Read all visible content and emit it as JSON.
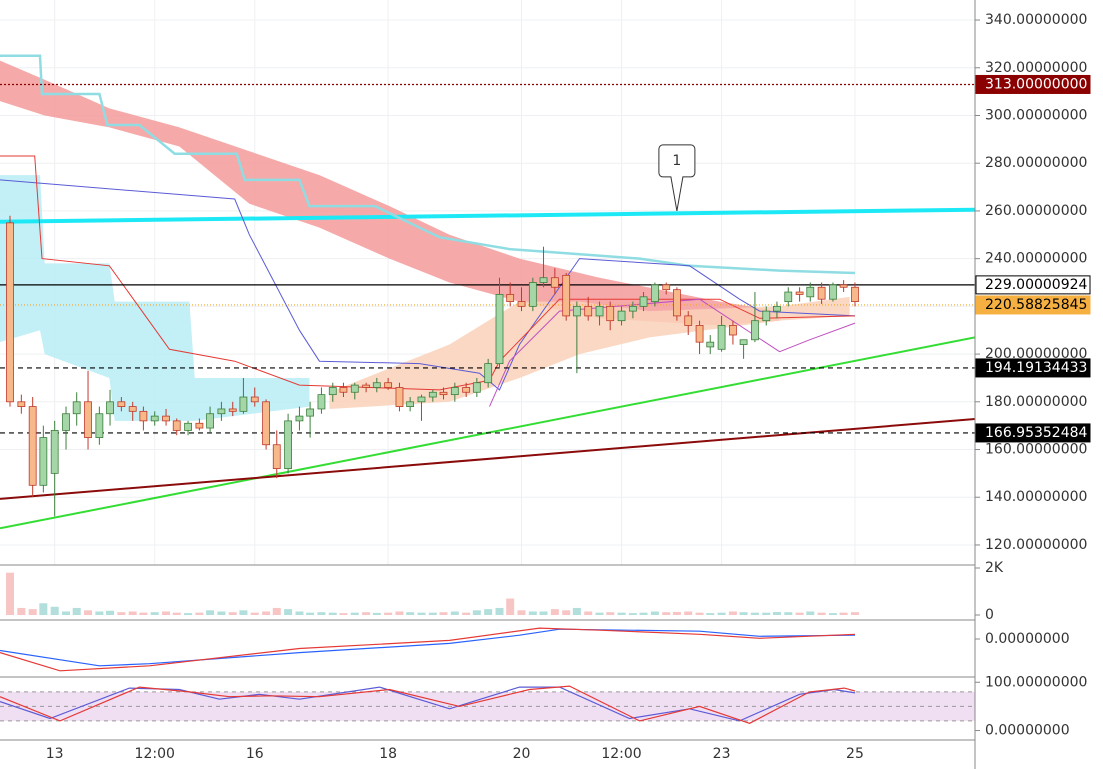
{
  "chart_data": {
    "type": "candlestick",
    "xlim": [
      12.18,
      26.8
    ],
    "xticks": [
      13,
      {
        "value": 14.5,
        "label": "12:00"
      },
      16,
      18,
      20,
      {
        "value": 21.5,
        "label": "12:00"
      },
      23,
      25
    ],
    "ylim": [
      111.6,
      348.4
    ],
    "yticks": [
      {
        "value": 340,
        "label": "340.00000000"
      },
      {
        "value": 320,
        "label": "320.00000000"
      },
      {
        "value": 300,
        "label": "300.00000000"
      },
      {
        "value": 280,
        "label": "280.00000000"
      },
      {
        "value": 260,
        "label": "260.00000000"
      },
      {
        "value": 240,
        "label": "240.00000000"
      },
      {
        "value": 220,
        "label": "220.00000000"
      },
      {
        "value": 200,
        "label": "200.00000000"
      },
      {
        "value": 180,
        "label": "180.00000000"
      },
      {
        "value": 160,
        "label": "160.00000000"
      },
      {
        "value": 140,
        "label": "140.00000000"
      },
      {
        "value": 120,
        "label": "120.00000000"
      }
    ],
    "grid": true,
    "up_color": "#a5d6a7",
    "up_stroke": "#3c7f3c",
    "down_color": "#f7b98a",
    "down_stroke": "#c0392b",
    "x": [
      12.33,
      12.5,
      12.67,
      12.83,
      13,
      13.17,
      13.33,
      13.5,
      13.67,
      13.83,
      14,
      14.17,
      14.33,
      14.5,
      14.67,
      14.83,
      15,
      15.17,
      15.33,
      15.5,
      15.67,
      15.83,
      16,
      16.17,
      16.33,
      16.5,
      16.67,
      16.83,
      17,
      17.17,
      17.33,
      17.5,
      17.67,
      17.83,
      18,
      18.17,
      18.33,
      18.5,
      18.67,
      18.83,
      19,
      19.17,
      19.33,
      19.5,
      19.67,
      19.83,
      20,
      20.17,
      20.33,
      20.5,
      20.67,
      20.83,
      21,
      21.17,
      21.33,
      21.5,
      21.67,
      21.83,
      22,
      22.17,
      22.33,
      22.5,
      22.67,
      22.83,
      23,
      23.17,
      23.33,
      23.5,
      23.67,
      23.83,
      24,
      24.17,
      24.33,
      24.5,
      24.67,
      24.83,
      25
    ],
    "open": [
      255,
      180,
      178,
      145,
      150,
      168,
      175,
      180,
      165,
      175,
      180,
      178,
      176,
      172,
      174,
      172,
      168,
      171,
      169,
      175,
      177,
      176,
      182,
      180,
      162,
      152,
      172,
      174,
      177,
      183,
      186,
      184,
      187,
      186,
      188,
      186,
      178,
      180,
      182,
      184,
      183,
      186,
      184,
      188,
      196,
      225,
      222,
      220,
      230,
      232,
      233,
      216,
      220,
      216,
      220,
      214,
      218,
      220,
      222,
      229,
      227,
      216,
      212,
      203,
      202,
      212,
      204,
      206,
      214,
      218,
      222,
      226,
      224,
      228,
      223,
      229,
      228
    ],
    "high": [
      258,
      183,
      182,
      170,
      172,
      178,
      184,
      193,
      178,
      185,
      182,
      180,
      178,
      176,
      177,
      173,
      172,
      173,
      178,
      180,
      180,
      190,
      186,
      181,
      168,
      175,
      178,
      180,
      186,
      188,
      188,
      188,
      188,
      190,
      190,
      188,
      182,
      183,
      185,
      186,
      188,
      188,
      190,
      198,
      232,
      230,
      228,
      232,
      245,
      236,
      234,
      222,
      224,
      222,
      222,
      220,
      222,
      226,
      230,
      230,
      228,
      218,
      214,
      208,
      216,
      214,
      206,
      226,
      220,
      222,
      228,
      228,
      230,
      230,
      230,
      231,
      230
    ],
    "low": [
      178,
      175,
      140,
      142,
      132,
      160,
      170,
      160,
      162,
      170,
      176,
      172,
      168,
      170,
      170,
      166,
      166,
      168,
      167,
      172,
      174,
      175,
      178,
      160,
      148,
      150,
      168,
      165,
      175,
      180,
      182,
      181,
      184,
      184,
      185,
      176,
      176,
      172,
      180,
      181,
      180,
      182,
      182,
      186,
      194,
      220,
      218,
      218,
      228,
      225,
      214,
      192,
      214,
      212,
      210,
      212,
      215,
      218,
      220,
      225,
      214,
      208,
      200,
      200,
      201,
      204,
      198,
      205,
      212,
      215,
      220,
      222,
      222,
      221,
      222,
      226,
      220
    ],
    "close": [
      180,
      178,
      145,
      165,
      168,
      175,
      180,
      165,
      175,
      180,
      178,
      176,
      172,
      174,
      172,
      168,
      171,
      169,
      175,
      177,
      176,
      182,
      180,
      162,
      152,
      172,
      174,
      177,
      183,
      186,
      184,
      187,
      186,
      188,
      186,
      178,
      180,
      182,
      184,
      183,
      186,
      184,
      188,
      196,
      225,
      222,
      220,
      230,
      232,
      228,
      216,
      220,
      216,
      220,
      214,
      218,
      220,
      224,
      229,
      227,
      216,
      212,
      205,
      205,
      212,
      208,
      206,
      214,
      218,
      220,
      226,
      225,
      228,
      223,
      229,
      228,
      222
    ],
    "clouds": [
      {
        "color": "#b9ecf5",
        "x": [
          12.18,
          12.78,
          12.85,
          13.82,
          13.9,
          15.02,
          15.1,
          16.82
        ],
        "upper": [
          275,
          275,
          238,
          238,
          222,
          222,
          190,
          190
        ],
        "lower": [
          205,
          210,
          200,
          190,
          172,
          172,
          172,
          178
        ]
      },
      {
        "color": "#f59a9a",
        "x": [
          12.18,
          12.85,
          13.82,
          14.87,
          15.92,
          16.97,
          18.02,
          18.92,
          19.97,
          21.17,
          22.97,
          23.87
        ],
        "upper": [
          323,
          315,
          303,
          295,
          285,
          275,
          262,
          250,
          240,
          232,
          222,
          218
        ],
        "lower": [
          306,
          300,
          295,
          287,
          263,
          253,
          240,
          230,
          222,
          215,
          212,
          214
        ]
      },
      {
        "color": "#fad1b8",
        "x": [
          17.12,
          18.92,
          19.97,
          20.87,
          21.92,
          23.87,
          24.92
        ],
        "upper": [
          184,
          204,
          222,
          222,
          218,
          220,
          224
        ],
        "lower": [
          177,
          180,
          190,
          200,
          207,
          214,
          216
        ]
      }
    ],
    "indicator_lines": [
      {
        "color": "#8fdde3",
        "width": 2.5,
        "x": [
          12.18,
          12.78,
          12.81,
          13.67,
          13.79,
          14.27,
          14.8,
          15.73,
          15.85,
          16.67,
          16.82,
          17.8,
          18.77,
          19.82,
          21.77,
          22.52,
          23.87,
          25.0
        ],
        "y": [
          325,
          325,
          309,
          309,
          296,
          296,
          284,
          284,
          273,
          273,
          262,
          262,
          249,
          244,
          240,
          237,
          235,
          234
        ]
      },
      {
        "color": "#5b5bd6",
        "width": 1,
        "x": [
          12.18,
          15.7,
          15.92,
          16.67,
          16.97,
          18.47,
          19.37,
          19.67,
          19.97,
          20.87,
          22.52,
          23.27,
          23.57,
          25.0
        ],
        "y": [
          273,
          265,
          250,
          210,
          197,
          196,
          192,
          185,
          204,
          240,
          237,
          223,
          218,
          216
        ]
      },
      {
        "color": "#e53935",
        "width": 1,
        "x": [
          12.18,
          12.7,
          12.81,
          13.82,
          14.72,
          15.7,
          16.67,
          18.77,
          19.52,
          19.67,
          20.57,
          21.17,
          22.97,
          23.57,
          25.0
        ],
        "y": [
          283,
          283,
          240,
          237,
          202,
          197,
          187,
          185,
          189,
          197,
          223,
          223,
          223,
          215,
          216
        ]
      },
      {
        "color": "#c050c0",
        "width": 1,
        "x": [
          19.52,
          19.82,
          20.57,
          22.67,
          23.87,
          24.32,
          25.0
        ],
        "y": [
          178,
          197,
          218,
          223,
          201,
          206,
          213
        ]
      }
    ],
    "trend_lines": [
      {
        "color": "#1de9f6",
        "width": 4,
        "x": [
          12.18,
          26.8
        ],
        "y": [
          255.5,
          260.5
        ]
      },
      {
        "color": "#33dd33",
        "width": 2,
        "x": [
          12.18,
          26.8
        ],
        "y": [
          127,
          207
        ]
      },
      {
        "color": "#8b0a0a",
        "width": 2,
        "x": [
          12.18,
          26.8
        ],
        "y": [
          139.3,
          172.8
        ]
      }
    ],
    "price_lines": [
      {
        "value": 313,
        "label": "313.00000000",
        "color": "#8b0000",
        "dash": "2 2",
        "label_bg": "#8b0000",
        "label_color": "#ffffff"
      },
      {
        "value": 229.00000924,
        "color": "#000000",
        "dash": "",
        "label_bg": "#ffffff",
        "label_color": "#000000"
      },
      {
        "value": 220.58825845,
        "color": "#f5a623",
        "dash": "1 2",
        "label_bg": "#f5b041",
        "label_color": "#000000"
      },
      {
        "value": 194.19134433,
        "color": "#000000",
        "dash": "5 4",
        "label_bg": "#000000",
        "label_color": "#ffffff"
      },
      {
        "value": 166.95352484,
        "color": "#000000",
        "dash": "5 4",
        "label_bg": "#000000",
        "label_color": "#ffffff"
      }
    ],
    "annotations": [
      {
        "text": "1",
        "x": 22.33,
        "y": 260
      }
    ],
    "volume": {
      "ylim": [
        -213,
        2128
      ],
      "yticks": [
        0,
        {
          "value": 2000,
          "label": "2K"
        }
      ],
      "up_color": "#b2dfdb",
      "down_color": "#f8c5c5",
      "values": [
        1800,
        300,
        250,
        500,
        350,
        150,
        300,
        200,
        150,
        180,
        120,
        150,
        100,
        120,
        150,
        100,
        80,
        100,
        200,
        150,
        120,
        200,
        100,
        150,
        300,
        250,
        150,
        100,
        120,
        100,
        80,
        100,
        120,
        90,
        100,
        150,
        120,
        100,
        100,
        120,
        150,
        100,
        200,
        250,
        300,
        700,
        200,
        150,
        150,
        250,
        200,
        300,
        150,
        100,
        120,
        100,
        80,
        100,
        150,
        120,
        130,
        150,
        100,
        80,
        100,
        150,
        120,
        100,
        100,
        130,
        120,
        100,
        150,
        100,
        80,
        100,
        120
      ]
    },
    "macd": {
      "ylim": [
        -8,
        4
      ],
      "yticks": [
        {
          "value": 0,
          "label": "0.00000000"
        }
      ],
      "lines": [
        {
          "color": "#2962ff",
          "x": [
            12.18,
            13.67,
            14.42,
            16.67,
            18.92,
            19.97,
            20.57,
            22.67,
            23.57,
            25.0
          ],
          "y": [
            -2.43,
            -5.64,
            -5.21,
            -2.86,
            -0.93,
            0.79,
            2.07,
            1.64,
            0.57,
            0.79
          ]
        },
        {
          "color": "#e53935",
          "x": [
            12.18,
            13.08,
            14.42,
            16.67,
            18.92,
            20.27,
            21.17,
            22.67,
            23.57,
            25.0
          ],
          "y": [
            -2.86,
            -6.7,
            -5.64,
            -2.0,
            -0.29,
            2.29,
            1.86,
            1.0,
            0.14,
            1.0
          ]
        }
      ]
    },
    "stoch": {
      "ylim": [
        -19.6,
        110.9
      ],
      "yticks": [
        {
          "value": 100,
          "label": "100.00000000"
        },
        {
          "value": 0,
          "label": "0.00000000"
        }
      ],
      "bands": [
        80,
        50,
        20
      ],
      "band_color": "#e1bee7",
      "lines": [
        {
          "color": "#5b5bd6",
          "x": [
            12.18,
            12.93,
            14.12,
            14.87,
            15.47,
            16.07,
            16.67,
            17.87,
            18.92,
            19.97,
            20.57,
            21.62,
            22.52,
            23.27,
            24.17,
            24.69,
            25.0
          ],
          "y": [
            60,
            25,
            88,
            85,
            65,
            75,
            65,
            90,
            45,
            90,
            90,
            25,
            45,
            20,
            75,
            85,
            78
          ]
        },
        {
          "color": "#e53935",
          "x": [
            12.18,
            13.08,
            14.27,
            15.02,
            15.62,
            16.22,
            16.97,
            18.02,
            19.07,
            20.12,
            20.72,
            21.77,
            22.67,
            23.42,
            24.32,
            24.84,
            25.0
          ],
          "y": [
            70,
            20,
            90,
            80,
            70,
            72,
            70,
            85,
            50,
            85,
            92,
            20,
            50,
            15,
            80,
            88,
            82
          ]
        }
      ]
    }
  }
}
